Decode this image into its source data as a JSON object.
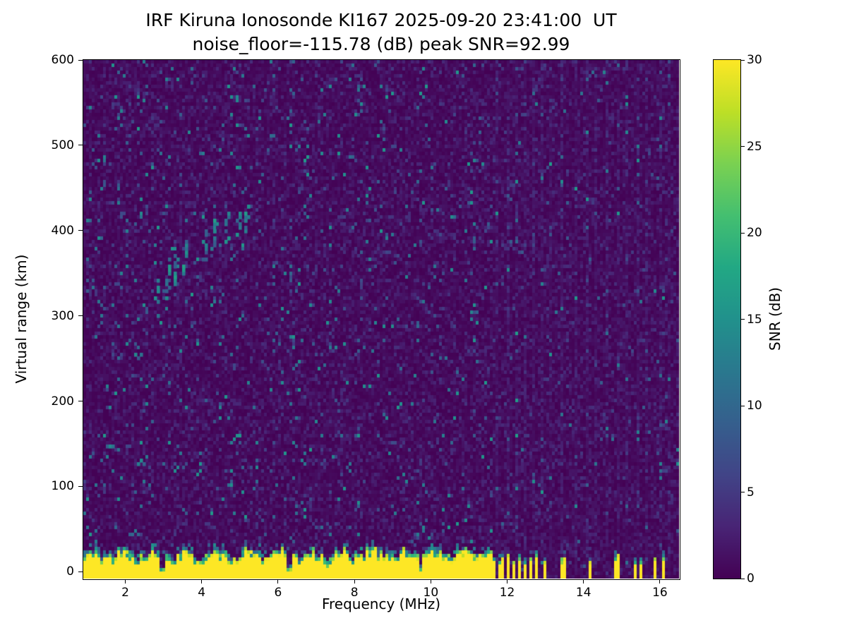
{
  "chart_data": {
    "type": "heatmap",
    "title": "IRF Kiruna Ionosonde KI167 2025-09-20 23:41:00  UT",
    "subtitle": "noise_floor=-115.78 (dB) peak SNR=92.99",
    "noise_floor_db": -115.78,
    "peak_snr_db": 92.99,
    "xlabel": "Frequency (MHz)",
    "ylabel": "Virtual range (km)",
    "colorbar_label": "SNR (dB)",
    "xlim": [
      0.9,
      16.5
    ],
    "ylim": [
      -8,
      600
    ],
    "clim": [
      0,
      30
    ],
    "x_ticks": [
      2,
      4,
      6,
      8,
      10,
      12,
      14,
      16
    ],
    "y_ticks": [
      0,
      100,
      200,
      300,
      400,
      500,
      600
    ],
    "colorbar_ticks": [
      0,
      5,
      10,
      15,
      20,
      25,
      30
    ],
    "grid": false,
    "colormap": "viridis",
    "colormap_stops": [
      [
        0.0,
        "#440154"
      ],
      [
        0.1,
        "#482475"
      ],
      [
        0.2,
        "#414487"
      ],
      [
        0.3,
        "#355f8d"
      ],
      [
        0.4,
        "#2a788e"
      ],
      [
        0.5,
        "#21918c"
      ],
      [
        0.6,
        "#22a884"
      ],
      [
        0.7,
        "#44bf70"
      ],
      [
        0.8,
        "#7ad151"
      ],
      [
        0.9,
        "#bddf26"
      ],
      [
        1.0,
        "#fde725"
      ]
    ],
    "features": {
      "background_noise_db": [
        0,
        3
      ],
      "clutter": {
        "description": "saturated near-range ground clutter band",
        "freq_max": 11.62,
        "top_km_range": [
          12,
          34
        ],
        "snr_db": 30,
        "notches": [
          2.97,
          6.3,
          9.75
        ]
      },
      "interference_bars": [
        [
          11.68,
          0.078
        ],
        [
          11.79,
          0.078
        ],
        [
          11.91,
          0.08
        ],
        [
          12.03,
          0.078
        ],
        [
          12.16,
          0.078
        ],
        [
          12.31,
          0.08
        ],
        [
          12.47,
          0.078
        ],
        [
          12.63,
          0.08
        ],
        [
          12.8,
          0.078
        ],
        [
          12.98,
          0.08
        ],
        [
          13.42,
          0.08
        ],
        [
          13.54,
          0.078
        ],
        [
          14.2,
          0.09
        ],
        [
          14.88,
          0.1
        ],
        [
          15.36,
          0.08
        ],
        [
          15.53,
          0.078
        ],
        [
          15.9,
          0.09
        ],
        [
          16.08,
          0.08
        ]
      ],
      "noise_stripes": [
        [
          11.7,
          1.0
        ],
        [
          12.0,
          1.0
        ],
        [
          12.28,
          1.2
        ],
        [
          12.5,
          0.8
        ],
        [
          12.68,
          1.0
        ],
        [
          12.9,
          1.4
        ],
        [
          13.12,
          0.8
        ],
        [
          13.45,
          2.2
        ],
        [
          13.8,
          1.0
        ],
        [
          14.08,
          1.2
        ],
        [
          14.35,
          0.7
        ],
        [
          14.62,
          1.0
        ],
        [
          14.9,
          1.3
        ],
        [
          15.12,
          0.8
        ],
        [
          15.45,
          1.0
        ],
        [
          15.68,
          0.7
        ],
        [
          16.0,
          1.1
        ],
        [
          16.22,
          0.8
        ]
      ],
      "echo_trace": [
        [
          2.82,
          300,
          45,
          0.05
        ],
        [
          3.1,
          322,
          48,
          0.06
        ],
        [
          3.3,
          335,
          40,
          0.05
        ],
        [
          3.55,
          348,
          45,
          0.06
        ],
        [
          4.05,
          360,
          45,
          0.06
        ],
        [
          4.3,
          372,
          45,
          0.05
        ],
        [
          4.65,
          385,
          40,
          0.05
        ],
        [
          4.95,
          395,
          35,
          0.05
        ],
        [
          5.15,
          402,
          30,
          0.04
        ]
      ],
      "echo_patches": [
        [
          2.35,
          128
        ],
        [
          2.25,
          252
        ],
        [
          1.55,
          148
        ]
      ]
    }
  }
}
